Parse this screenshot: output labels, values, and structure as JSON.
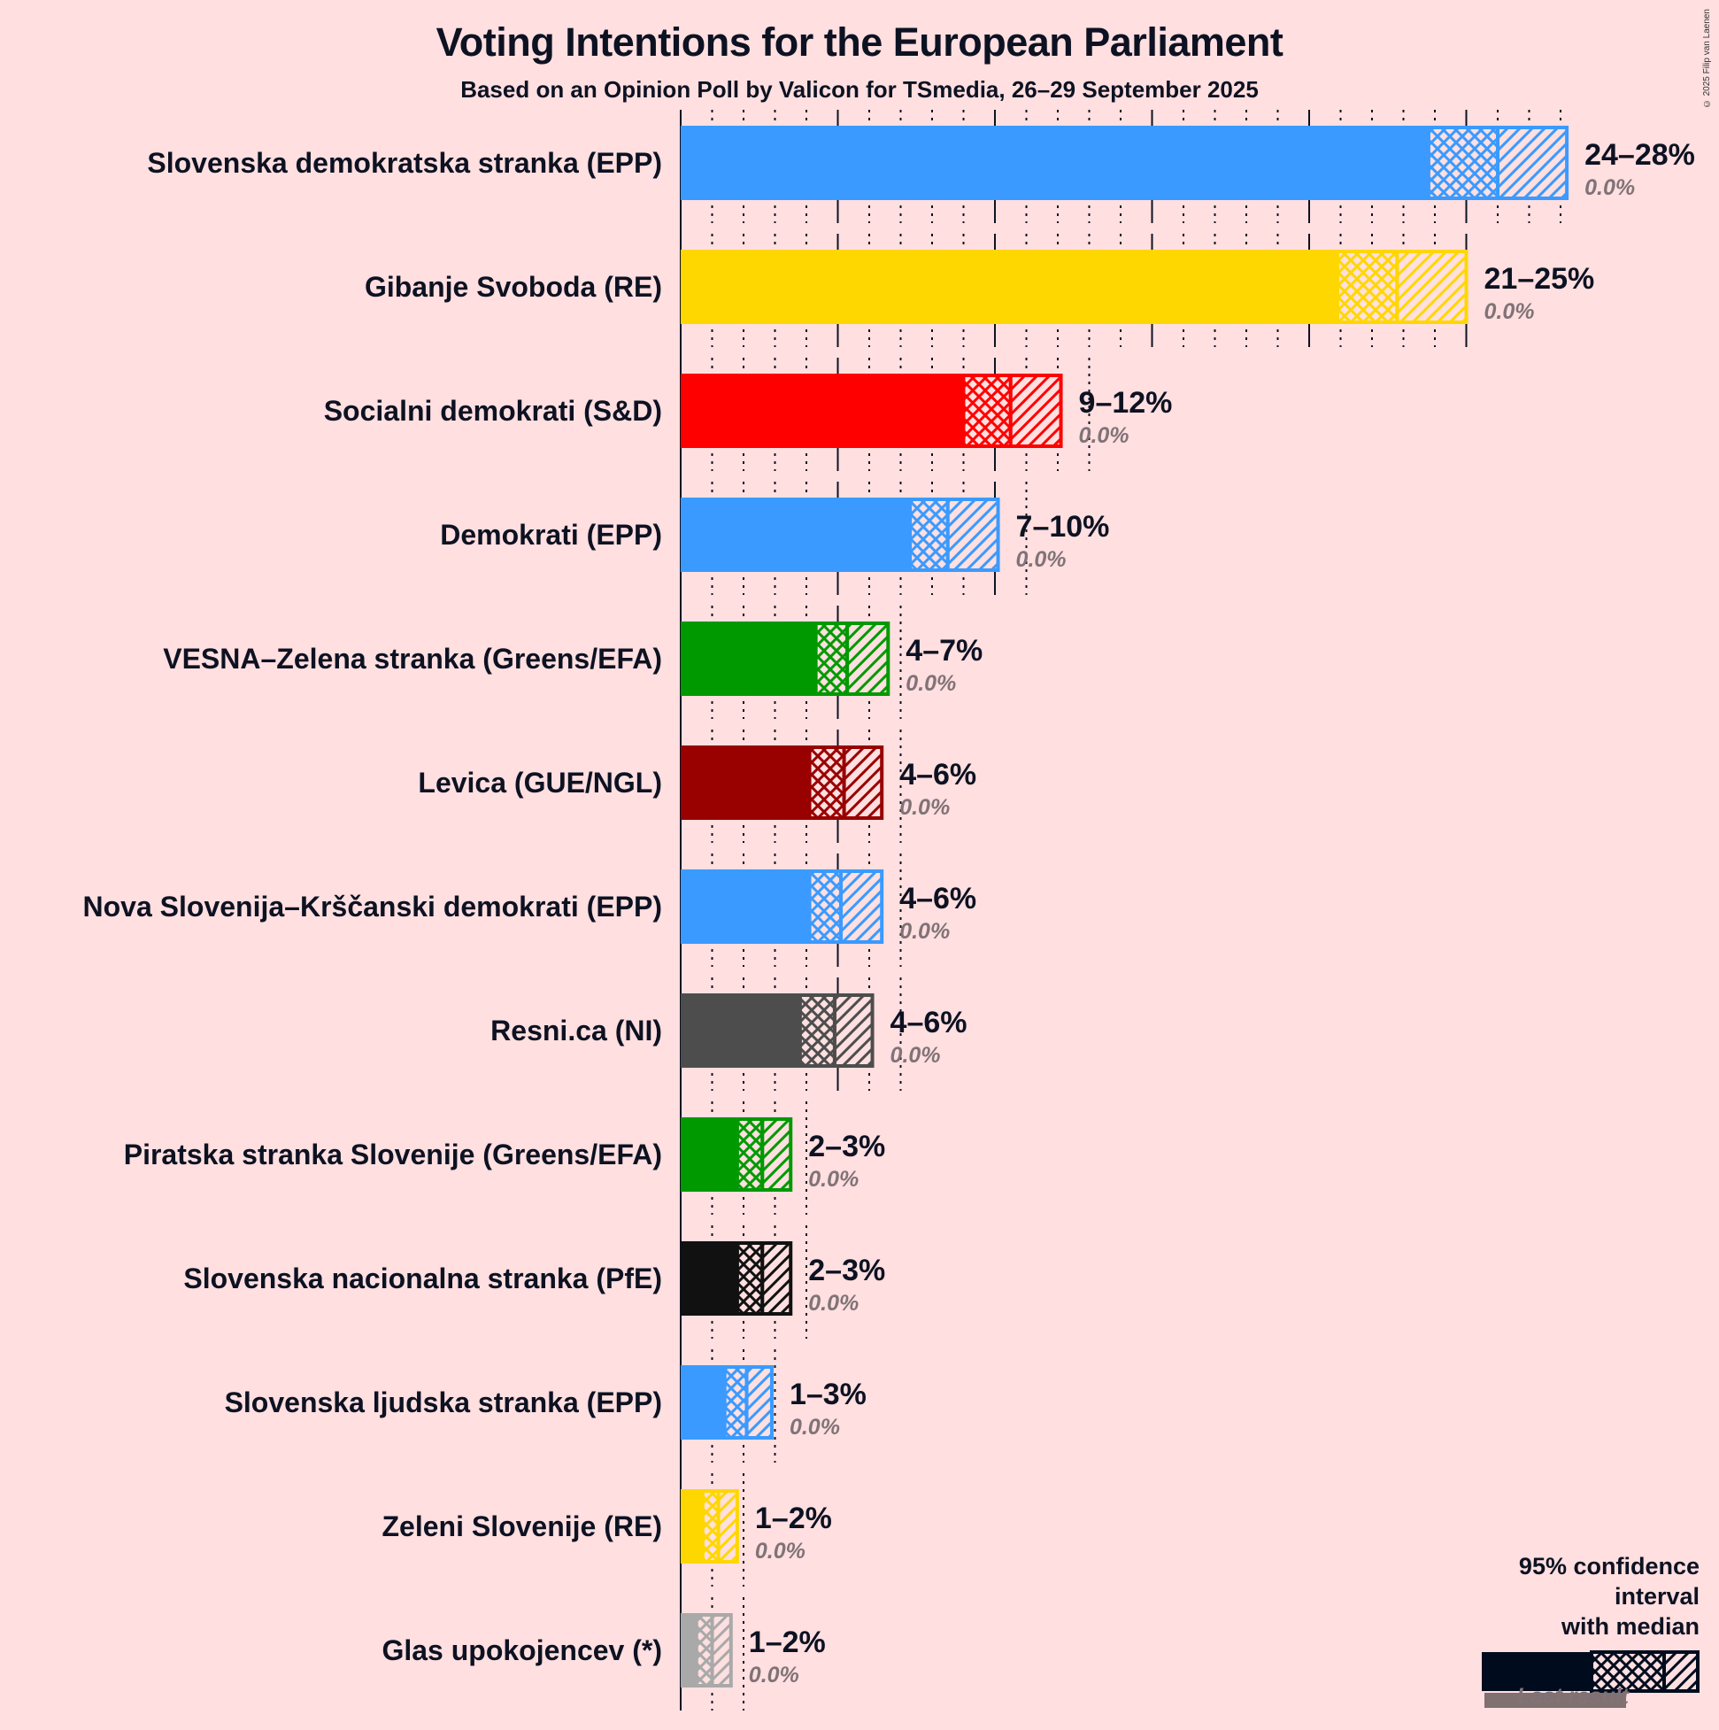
{
  "title": "Voting Intentions for the European Parliament",
  "subtitle": "Based on an Opinion Poll by Valicon for TSmedia, 26–29 September 2025",
  "copyright": "© 2025 Filip van Laenen",
  "legend": {
    "title_line1": "95% confidence interval",
    "title_line2": "with median",
    "last_result": "Last result",
    "color": "#000C1E",
    "last_color": "#807070"
  },
  "chart_data": {
    "type": "bar",
    "orientation": "horizontal",
    "title": "Voting Intentions for the European Parliament",
    "subtitle": "Based on an Opinion Poll by Valicon for TSmedia, 26–29 September 2025",
    "xlabel": "",
    "ylabel": "",
    "xlim": [
      0,
      28
    ],
    "grid": true,
    "grid_major_step": 5,
    "grid_minor_step": 1,
    "legend_position": "bottom-right",
    "categories": [
      "Slovenska demokratska stranka (EPP)",
      "Gibanje Svoboda (RE)",
      "Socialni demokrati (S&D)",
      "Demokrati (EPP)",
      "VESNA–Zelena stranka (Greens/EFA)",
      "Levica (GUE/NGL)",
      "Nova Slovenija–Krščanski demokrati (EPP)",
      "Resni.ca (NI)",
      "Piratska stranka Slovenije (Greens/EFA)",
      "Slovenska nacionalna stranka (PfE)",
      "Slovenska ljudska stranka (EPP)",
      "Zeleni Slovenije (RE)",
      "Glas upokojencev (*)"
    ],
    "series": [
      {
        "name": "CI low",
        "values": [
          23.8,
          20.9,
          9.0,
          7.3,
          4.3,
          4.1,
          4.1,
          3.8,
          1.8,
          1.8,
          1.4,
          0.7,
          0.5
        ]
      },
      {
        "name": "Median",
        "values": [
          26.0,
          22.8,
          10.5,
          8.5,
          5.3,
          5.2,
          5.1,
          4.9,
          2.6,
          2.6,
          2.1,
          1.2,
          1.0
        ]
      },
      {
        "name": "CI high",
        "values": [
          28.2,
          25.0,
          12.1,
          10.1,
          6.6,
          6.4,
          6.4,
          6.1,
          3.5,
          3.5,
          2.9,
          1.8,
          1.6
        ]
      },
      {
        "name": "Last result",
        "values": [
          0.0,
          0.0,
          0.0,
          0.0,
          0.0,
          0.0,
          0.0,
          0.0,
          0.0,
          0.0,
          0.0,
          0.0,
          0.0
        ]
      }
    ],
    "range_labels": [
      "24–28%",
      "21–25%",
      "9–12%",
      "7–10%",
      "4–7%",
      "4–6%",
      "4–6%",
      "4–6%",
      "2–3%",
      "2–3%",
      "1–3%",
      "1–2%",
      "1–2%"
    ],
    "last_result_labels": [
      "0.0%",
      "0.0%",
      "0.0%",
      "0.0%",
      "0.0%",
      "0.0%",
      "0.0%",
      "0.0%",
      "0.0%",
      "0.0%",
      "0.0%",
      "0.0%",
      "0.0%"
    ],
    "colors": [
      "#3A9AFF",
      "#FFD700",
      "#FF0000",
      "#3A9AFF",
      "#009900",
      "#990000",
      "#3A9AFF",
      "#4D4D4D",
      "#009900",
      "#111111",
      "#3A9AFF",
      "#FFD700",
      "#A9A9A9"
    ]
  }
}
